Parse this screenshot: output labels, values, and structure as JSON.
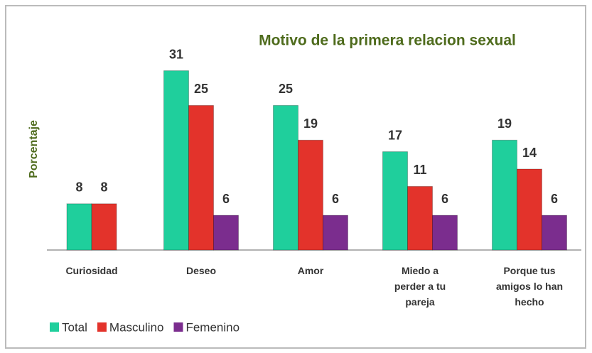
{
  "chart_data": {
    "type": "bar",
    "title": "Motivo de la primera relacion sexual",
    "y_label": "Porcentaje",
    "categories": [
      "Curiosidad",
      "Deseo",
      "Amor",
      "Miedo a perder a tu pareja",
      "Porque tus amigos lo han hecho"
    ],
    "series": [
      {
        "name": "Total",
        "color": "#1fcf9c",
        "values": [
          8,
          31,
          25,
          17,
          19
        ]
      },
      {
        "name": "Masculino",
        "color": "#e3332b",
        "values": [
          8,
          25,
          19,
          11,
          14
        ]
      },
      {
        "name": "Femenino",
        "color": "#7b2d8e",
        "values": [
          null,
          6,
          6,
          6,
          6
        ]
      }
    ],
    "ylim": [
      0,
      35
    ],
    "legend": "bottom"
  }
}
